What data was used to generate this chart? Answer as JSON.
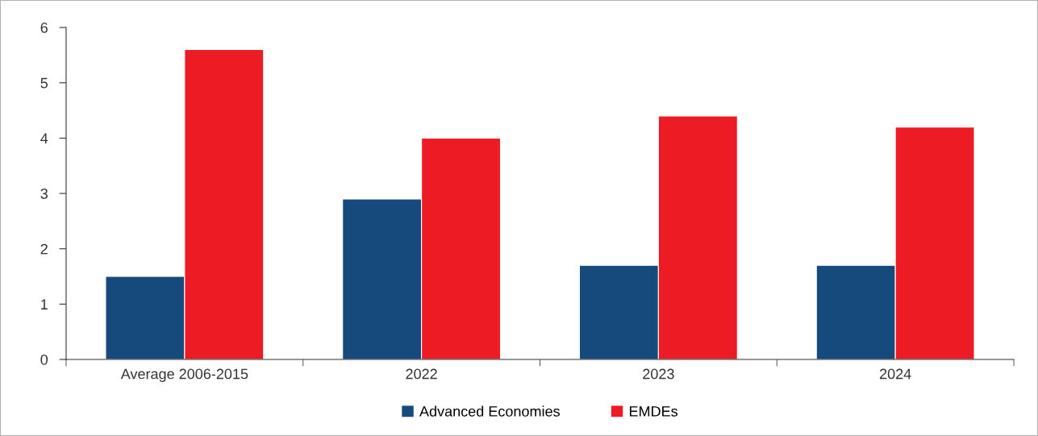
{
  "chart_data": {
    "type": "bar",
    "categories": [
      "Average 2006-2015",
      "2022",
      "2023",
      "2024"
    ],
    "series": [
      {
        "name": "Advanced Economies",
        "color": "#174a7c",
        "values": [
          1.5,
          2.9,
          1.7,
          1.7
        ]
      },
      {
        "name": "EMDEs",
        "color": "#ed1c24",
        "values": [
          5.6,
          4.0,
          4.4,
          4.2
        ]
      }
    ],
    "ylim": [
      0,
      6
    ],
    "yticks": [
      0,
      1,
      2,
      3,
      4,
      5,
      6
    ],
    "grid": false,
    "legend": "bottom"
  }
}
